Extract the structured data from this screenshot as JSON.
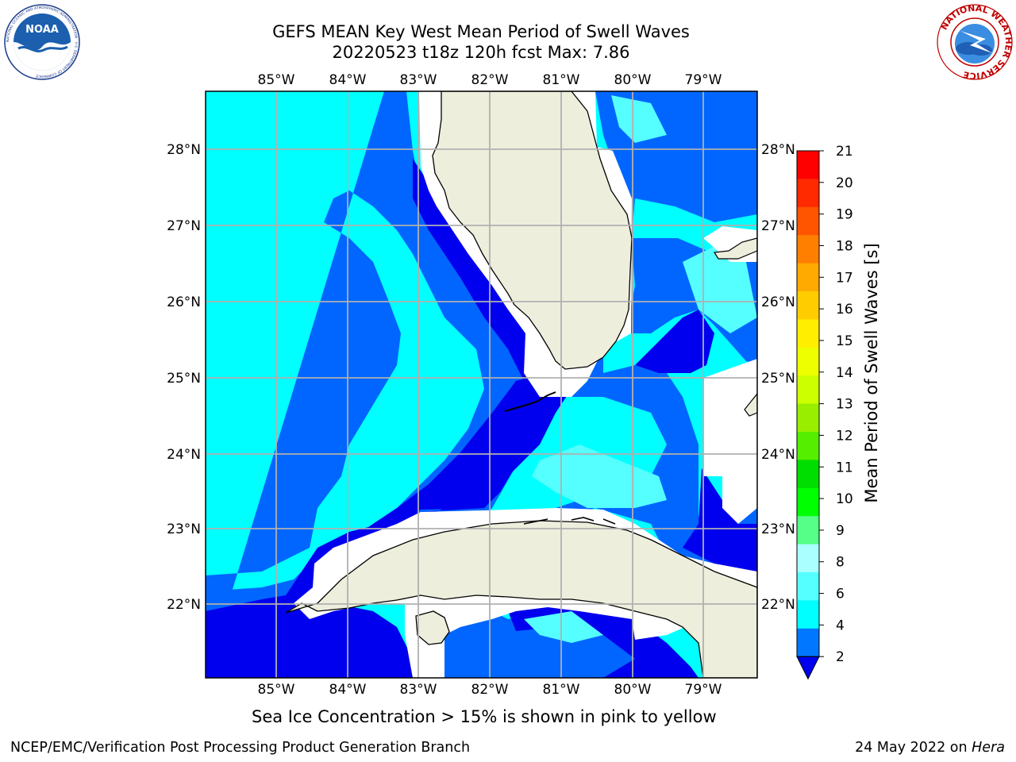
{
  "title": {
    "line1": "GEFS MEAN Key West Mean Period of Swell Waves",
    "line2": "20220523 t18z 120h fcst   Max: 7.86"
  },
  "logos": {
    "left": {
      "text": "NOAA",
      "ring_text": "NATIONAL OCEANIC AND ATMOSPHERIC ADMINISTRATION · U.S. DEPARTMENT OF COMMERCE"
    },
    "right": {
      "ring_text": "NATIONAL WEATHER SERVICE"
    }
  },
  "map": {
    "lon_ticks": [
      "85°W",
      "84°W",
      "83°W",
      "82°W",
      "81°W",
      "80°W",
      "79°W"
    ],
    "lat_ticks": [
      "28°N",
      "27°N",
      "26°N",
      "25°N",
      "24°N",
      "23°N",
      "22°N"
    ],
    "colors": {
      "land": "#eeeedd",
      "band_2_4": "#0000ee",
      "band_4_6": "#0066ff",
      "band_6_8": "#00ffff",
      "band_8_9": "#55ffff",
      "grid": "#b0b0b0"
    }
  },
  "colorbar": {
    "label": "Mean Period of Swell Waves [s]",
    "ticks": [
      "21",
      "20",
      "19",
      "18",
      "17",
      "16",
      "15",
      "14",
      "13",
      "12",
      "11",
      "10",
      "9",
      "8",
      "6",
      "4",
      "2"
    ],
    "colors": [
      "#ff0000",
      "#ff2a00",
      "#ff5500",
      "#ff7f00",
      "#ffaa00",
      "#ffcc00",
      "#ffee00",
      "#eeff00",
      "#ccff00",
      "#99ee00",
      "#55ee00",
      "#00dd00",
      "#00ff00",
      "#55ff88",
      "#aaffff",
      "#55ffff",
      "#00ffff",
      "#0077ff",
      "#0000ee"
    ]
  },
  "caption": "Sea Ice Concentration > 15% is shown in pink to yellow",
  "footer": {
    "left": "NCEP/EMC/Verification Post Processing Product Generation Branch",
    "right_prefix": "24 May 2022 on ",
    "right_host": "Hera"
  }
}
